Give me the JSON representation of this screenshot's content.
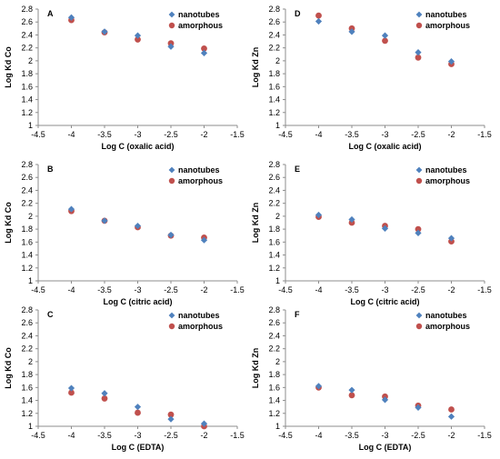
{
  "colors": {
    "nanotubes": "#4f81bd",
    "amorphous": "#c0504d",
    "axis": "#8c8c8c",
    "text": "#000000"
  },
  "chart_data": [
    {
      "type": "scatter",
      "panel_label": "A",
      "xlabel": "Log C (oxalic acid)",
      "ylabel": "Log Kd Co",
      "xlim": [
        -4.5,
        -1.5
      ],
      "ylim": [
        1,
        2.8
      ],
      "xticks": [
        "-4.5",
        "-4",
        "-3.5",
        "-3",
        "-2.5",
        "-2",
        "-1.5"
      ],
      "yticks": [
        "1",
        "1.2",
        "1.4",
        "1.6",
        "1.8",
        "2",
        "2.2",
        "2.4",
        "2.6",
        "2.8"
      ],
      "grid": false,
      "legend_position": "top-right",
      "series": [
        {
          "name": "nanotubes",
          "marker": "diamond",
          "x": [
            -4,
            -3.5,
            -3,
            -2.5,
            -2
          ],
          "y": [
            2.67,
            2.45,
            2.39,
            2.22,
            2.12
          ]
        },
        {
          "name": "amorphous",
          "marker": "circle",
          "x": [
            -4,
            -3.5,
            -3,
            -2.5,
            -2
          ],
          "y": [
            2.63,
            2.44,
            2.33,
            2.27,
            2.19
          ]
        }
      ]
    },
    {
      "type": "scatter",
      "panel_label": "D",
      "xlabel": "Log C (oxalic acid)",
      "ylabel": "Log Kd Zn",
      "xlim": [
        -4.5,
        -1.5
      ],
      "ylim": [
        1,
        2.8
      ],
      "xticks": [
        "-4.5",
        "-4",
        "-3.5",
        "-3",
        "-2.5",
        "-2",
        "-1.5"
      ],
      "yticks": [
        "1",
        "1.2",
        "1.4",
        "1.6",
        "1.8",
        "2",
        "2.2",
        "2.4",
        "2.6",
        "2.8"
      ],
      "grid": false,
      "legend_position": "top-right",
      "series": [
        {
          "name": "nanotubes",
          "marker": "diamond",
          "x": [
            -4,
            -3.5,
            -3,
            -2.5,
            -2
          ],
          "y": [
            2.61,
            2.45,
            2.39,
            2.13,
            1.99
          ]
        },
        {
          "name": "amorphous",
          "marker": "circle",
          "x": [
            -4,
            -3.5,
            -3,
            -2.5,
            -2
          ],
          "y": [
            2.7,
            2.5,
            2.31,
            2.05,
            1.95
          ]
        }
      ]
    },
    {
      "type": "scatter",
      "panel_label": "B",
      "xlabel": "Log C (citric acid)",
      "ylabel": "Log Kd Co",
      "xlim": [
        -4.5,
        -1.5
      ],
      "ylim": [
        1,
        2.8
      ],
      "xticks": [
        "-4.5",
        "-4",
        "-3.5",
        "-3",
        "-2.5",
        "-2",
        "-1.5"
      ],
      "yticks": [
        "1",
        "1.2",
        "1.4",
        "1.6",
        "1.8",
        "2",
        "2.2",
        "2.4",
        "2.6",
        "2.8"
      ],
      "grid": false,
      "legend_position": "top-right",
      "series": [
        {
          "name": "nanotubes",
          "marker": "diamond",
          "x": [
            -4,
            -3.5,
            -3,
            -2.5,
            -2
          ],
          "y": [
            2.11,
            1.93,
            1.85,
            1.71,
            1.63
          ]
        },
        {
          "name": "amorphous",
          "marker": "circle",
          "x": [
            -4,
            -3.5,
            -3,
            -2.5,
            -2
          ],
          "y": [
            2.08,
            1.93,
            1.83,
            1.7,
            1.67
          ]
        }
      ]
    },
    {
      "type": "scatter",
      "panel_label": "E",
      "xlabel": "Log C (citric acid)",
      "ylabel": "Log Kd Zn",
      "xlim": [
        -4.5,
        -1.5
      ],
      "ylim": [
        1,
        2.8
      ],
      "xticks": [
        "-4.5",
        "-4",
        "-3.5",
        "-3",
        "-2.5",
        "-2",
        "-1.5"
      ],
      "yticks": [
        "1",
        "1.2",
        "1.4",
        "1.6",
        "1.8",
        "2",
        "2.2",
        "2.4",
        "2.6",
        "2.8"
      ],
      "grid": false,
      "legend_position": "top-right",
      "series": [
        {
          "name": "nanotubes",
          "marker": "diamond",
          "x": [
            -4,
            -3.5,
            -3,
            -2.5,
            -2
          ],
          "y": [
            2.02,
            1.95,
            1.81,
            1.74,
            1.66
          ]
        },
        {
          "name": "amorphous",
          "marker": "circle",
          "x": [
            -4,
            -3.5,
            -3,
            -2.5,
            -2
          ],
          "y": [
            1.99,
            1.9,
            1.85,
            1.8,
            1.61
          ]
        }
      ]
    },
    {
      "type": "scatter",
      "panel_label": "C",
      "xlabel": "Log C (EDTA)",
      "ylabel": "Log Kd Co",
      "xlim": [
        -4.5,
        -1.5
      ],
      "ylim": [
        1,
        2.8
      ],
      "xticks": [
        "-4.5",
        "-4",
        "-3.5",
        "-3",
        "-2.5",
        "-2",
        "-1.5"
      ],
      "yticks": [
        "1",
        "1.2",
        "1.4",
        "1.6",
        "1.8",
        "2",
        "2.2",
        "2.4",
        "2.6",
        "2.8"
      ],
      "grid": false,
      "legend_position": "top-right",
      "series": [
        {
          "name": "nanotubes",
          "marker": "diamond",
          "x": [
            -4,
            -3.5,
            -3,
            -2.5,
            -2
          ],
          "y": [
            1.59,
            1.51,
            1.3,
            1.11,
            1.04
          ]
        },
        {
          "name": "amorphous",
          "marker": "circle",
          "x": [
            -4,
            -3.5,
            -3,
            -2.5,
            -2
          ],
          "y": [
            1.52,
            1.43,
            1.21,
            1.18,
            1.0
          ]
        }
      ]
    },
    {
      "type": "scatter",
      "panel_label": "F",
      "xlabel": "Log C (EDTA)",
      "ylabel": "Log Kd Zn",
      "xlim": [
        -4.5,
        -1.5
      ],
      "ylim": [
        1,
        2.8
      ],
      "xticks": [
        "-4.5",
        "-4",
        "-3.5",
        "-3",
        "-2.5",
        "-2",
        "-1.5"
      ],
      "yticks": [
        "1",
        "1.2",
        "1.4",
        "1.6",
        "1.8",
        "2",
        "2.2",
        "2.4",
        "2.6",
        "2.8"
      ],
      "grid": false,
      "legend_position": "top-right",
      "series": [
        {
          "name": "nanotubes",
          "marker": "diamond",
          "x": [
            -4,
            -3.5,
            -3,
            -2.5,
            -2
          ],
          "y": [
            1.62,
            1.56,
            1.41,
            1.29,
            1.15
          ]
        },
        {
          "name": "amorphous",
          "marker": "circle",
          "x": [
            -4,
            -3.5,
            -3,
            -2.5,
            -2
          ],
          "y": [
            1.6,
            1.48,
            1.46,
            1.32,
            1.26
          ]
        }
      ]
    }
  ]
}
